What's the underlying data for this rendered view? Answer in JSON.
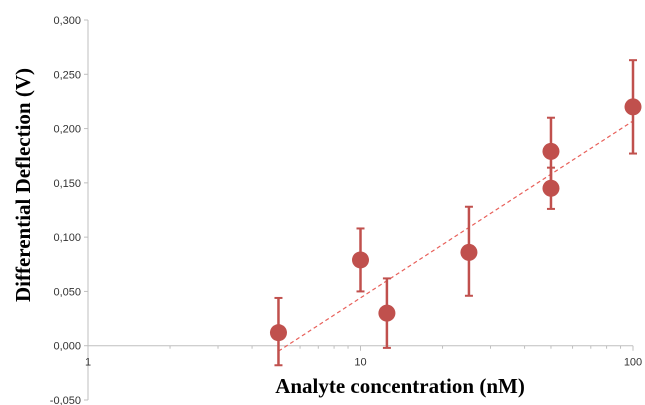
{
  "chart_data": {
    "type": "scatter",
    "title": "",
    "xlabel": "Analyte concentration (nM)",
    "ylabel": "Differential Deflection (V)",
    "x_scale": "log",
    "xlim": [
      1,
      100
    ],
    "ylim": [
      -0.05,
      0.3
    ],
    "x_ticks": [
      1,
      10,
      100
    ],
    "x_tick_labels": [
      "1",
      "10",
      "100"
    ],
    "y_ticks": [
      -0.05,
      0,
      0.05,
      0.1,
      0.15,
      0.2,
      0.25,
      0.3
    ],
    "y_tick_labels": [
      "-0,050",
      "0,000",
      "0,050",
      "0,100",
      "0,150",
      "0,200",
      "0,250",
      "0,300"
    ],
    "grid": false,
    "legend": "none",
    "series": [
      {
        "x": [
          5,
          10,
          12.5,
          25,
          50,
          50,
          100
        ],
        "y": [
          0.012,
          0.079,
          0.03,
          0.086,
          0.179,
          0.145,
          0.22
        ],
        "error_up": [
          0.032,
          0.029,
          0.032,
          0.042,
          0.031,
          0.019,
          0.043
        ],
        "error_down": [
          0.03,
          0.029,
          0.032,
          0.04,
          0.031,
          0.019,
          0.043
        ],
        "color": "#c0504d"
      }
    ],
    "trendline": {
      "style": "dashed",
      "color": "#e8605a",
      "x": [
        5,
        100
      ],
      "y": [
        -0.005,
        0.207
      ]
    }
  }
}
